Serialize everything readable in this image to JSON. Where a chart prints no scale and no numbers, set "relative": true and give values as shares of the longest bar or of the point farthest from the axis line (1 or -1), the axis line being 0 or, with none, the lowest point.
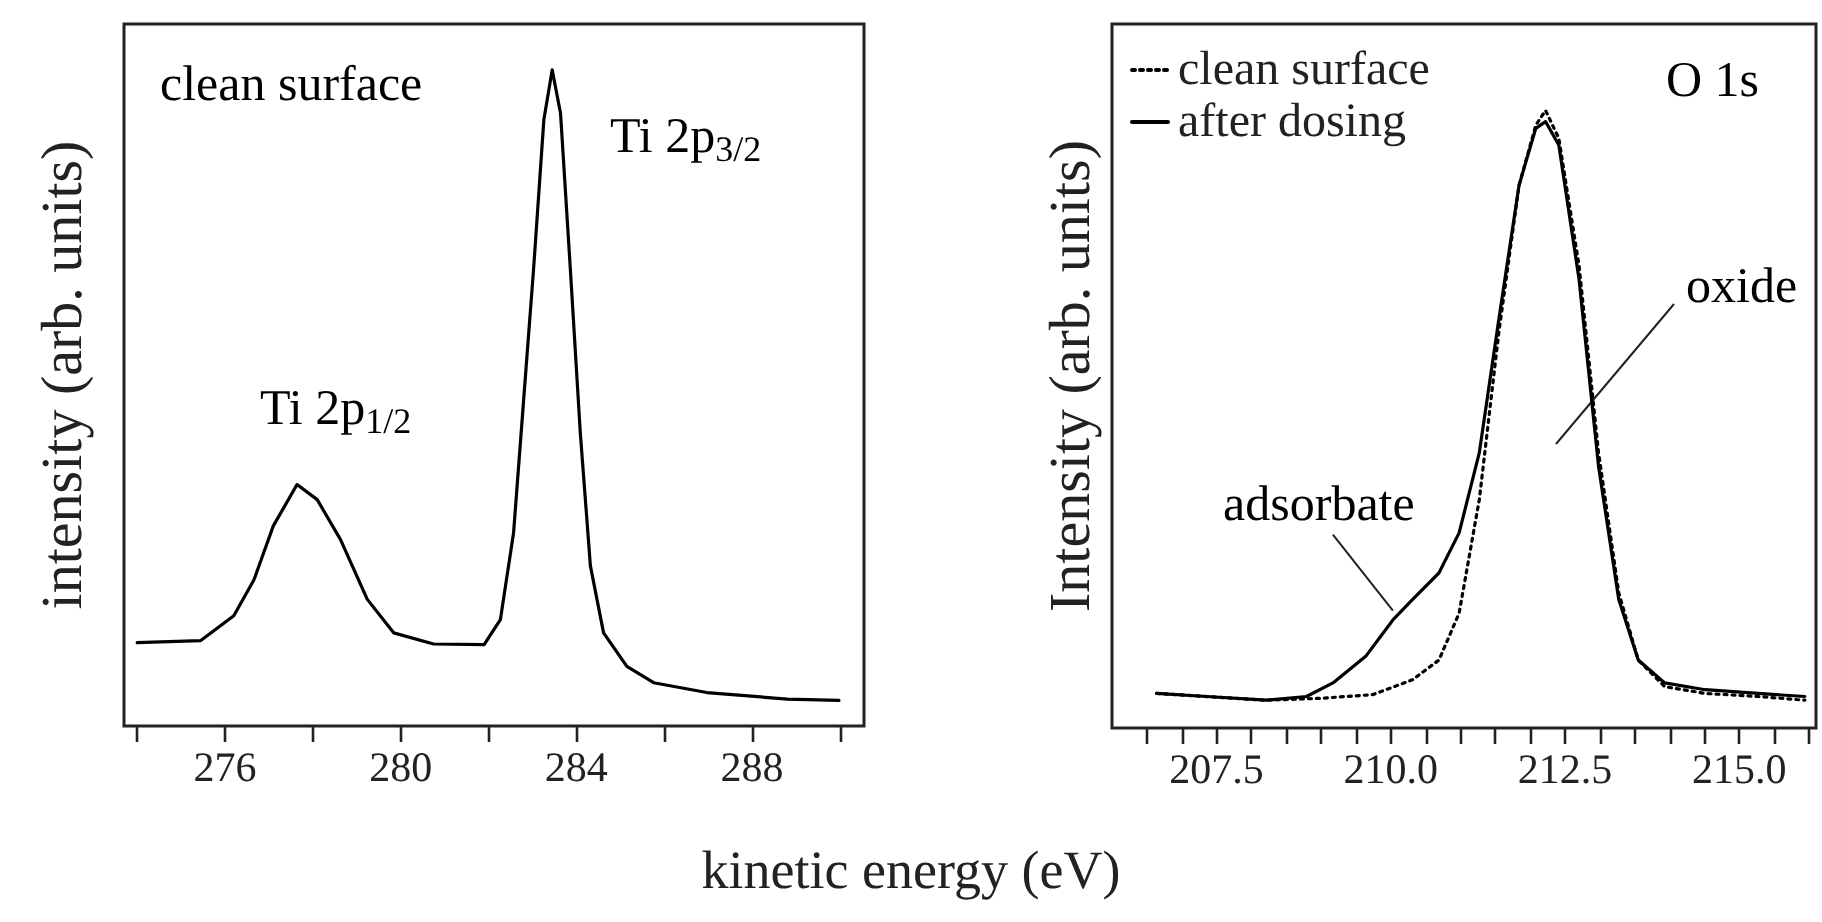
{
  "chart_data": [
    {
      "type": "line",
      "relative": true,
      "xlabel": "kinetic energy (eV)",
      "ylabel": "intensity (arb. units)",
      "annotations": [
        "clean surface",
        "Ti 2p$_{1/2}$",
        "Ti 2p$_{3/2}$"
      ],
      "xlim": [
        273.7,
        290.55
      ],
      "xticks": [
        {
          "value": 274,
          "label": null
        },
        276,
        {
          "value": 278,
          "label": null
        },
        280,
        {
          "value": 282,
          "label": null
        },
        284,
        {
          "value": 286,
          "label": null
        },
        288,
        {
          "value": 290,
          "label": null
        }
      ],
      "x": [
        274.0,
        275.44,
        276.2,
        276.66,
        277.1,
        277.64,
        278.1,
        278.63,
        279.24,
        279.84,
        280.75,
        281.9,
        282.27,
        282.57,
        282.8,
        283.03,
        283.26,
        283.45,
        283.64,
        283.86,
        284.09,
        284.32,
        284.62,
        285.15,
        285.76,
        286.97,
        288.8,
        289.98
      ],
      "series": [
        {
          "color": "#000000",
          "line_style": "solid",
          "values": [
            0.127,
            0.13,
            0.168,
            0.223,
            0.305,
            0.368,
            0.345,
            0.284,
            0.193,
            0.142,
            0.125,
            0.124,
            0.162,
            0.294,
            0.497,
            0.7,
            0.924,
            1.0,
            0.934,
            0.7,
            0.447,
            0.244,
            0.142,
            0.091,
            0.066,
            0.051,
            0.041,
            0.039
          ]
        }
      ],
      "grid": false,
      "legend": false
    },
    {
      "type": "line",
      "relative": true,
      "ylabel": "Intensity (arb. units)",
      "annotations": [
        "O 1s",
        {
          "text": "adsorbate",
          "x": 210.03,
          "y": 0.19
        },
        "oxide"
      ],
      "xlim": [
        206.0,
        216.1
      ],
      "xticks": [
        {
          "value": 206.5,
          "label": null
        },
        {
          "value": 207,
          "label": null
        },
        207.5,
        {
          "value": 208,
          "label": null
        },
        {
          "value": 208.5,
          "label": null
        },
        {
          "value": 209,
          "label": null
        },
        {
          "value": 209.5,
          "label": null
        },
        {
          "value": 210,
          "label": "210.0"
        },
        {
          "value": 210.5,
          "label": null
        },
        {
          "value": 211,
          "label": null
        },
        {
          "value": 211.5,
          "label": null
        },
        {
          "value": 212,
          "label": null
        },
        212.5,
        {
          "value": 213,
          "label": null
        },
        {
          "value": 213.5,
          "label": null
        },
        {
          "value": 214,
          "label": null
        },
        {
          "value": 214.5,
          "label": null
        },
        {
          "value": 215,
          "label": "215.0"
        },
        {
          "value": 215.5,
          "label": null
        },
        {
          "value": 216,
          "label": null
        }
      ],
      "series": [
        {
          "name": "clean surface",
          "color": "#000000",
          "line_style": "dotted",
          "x": [
            206.64,
            208.21,
            208.98,
            209.74,
            210.31,
            210.69,
            210.98,
            211.27,
            211.55,
            211.84,
            212.08,
            212.22,
            212.41,
            212.7,
            212.98,
            213.27,
            213.55,
            213.93,
            214.51,
            215.27,
            215.94
          ],
          "values": [
            0.056,
            0.045,
            0.048,
            0.054,
            0.078,
            0.11,
            0.186,
            0.37,
            0.641,
            0.879,
            0.976,
            1.0,
            0.955,
            0.749,
            0.446,
            0.219,
            0.11,
            0.067,
            0.056,
            0.051,
            0.045
          ]
        },
        {
          "name": "after dosing",
          "color": "#000000",
          "line_style": "solid",
          "x": [
            206.64,
            207.36,
            208.21,
            208.79,
            209.17,
            209.64,
            210.03,
            210.31,
            210.69,
            210.98,
            211.27,
            211.55,
            211.84,
            212.08,
            212.22,
            212.41,
            212.7,
            212.98,
            213.27,
            213.55,
            213.93,
            214.51,
            215.27,
            215.94
          ],
          "values": [
            0.056,
            0.051,
            0.045,
            0.051,
            0.073,
            0.116,
            0.175,
            0.208,
            0.251,
            0.316,
            0.446,
            0.662,
            0.879,
            0.971,
            0.982,
            0.944,
            0.727,
            0.424,
            0.208,
            0.11,
            0.073,
            0.062,
            0.056,
            0.051
          ]
        }
      ],
      "grid": false,
      "legend": "top left"
    }
  ]
}
